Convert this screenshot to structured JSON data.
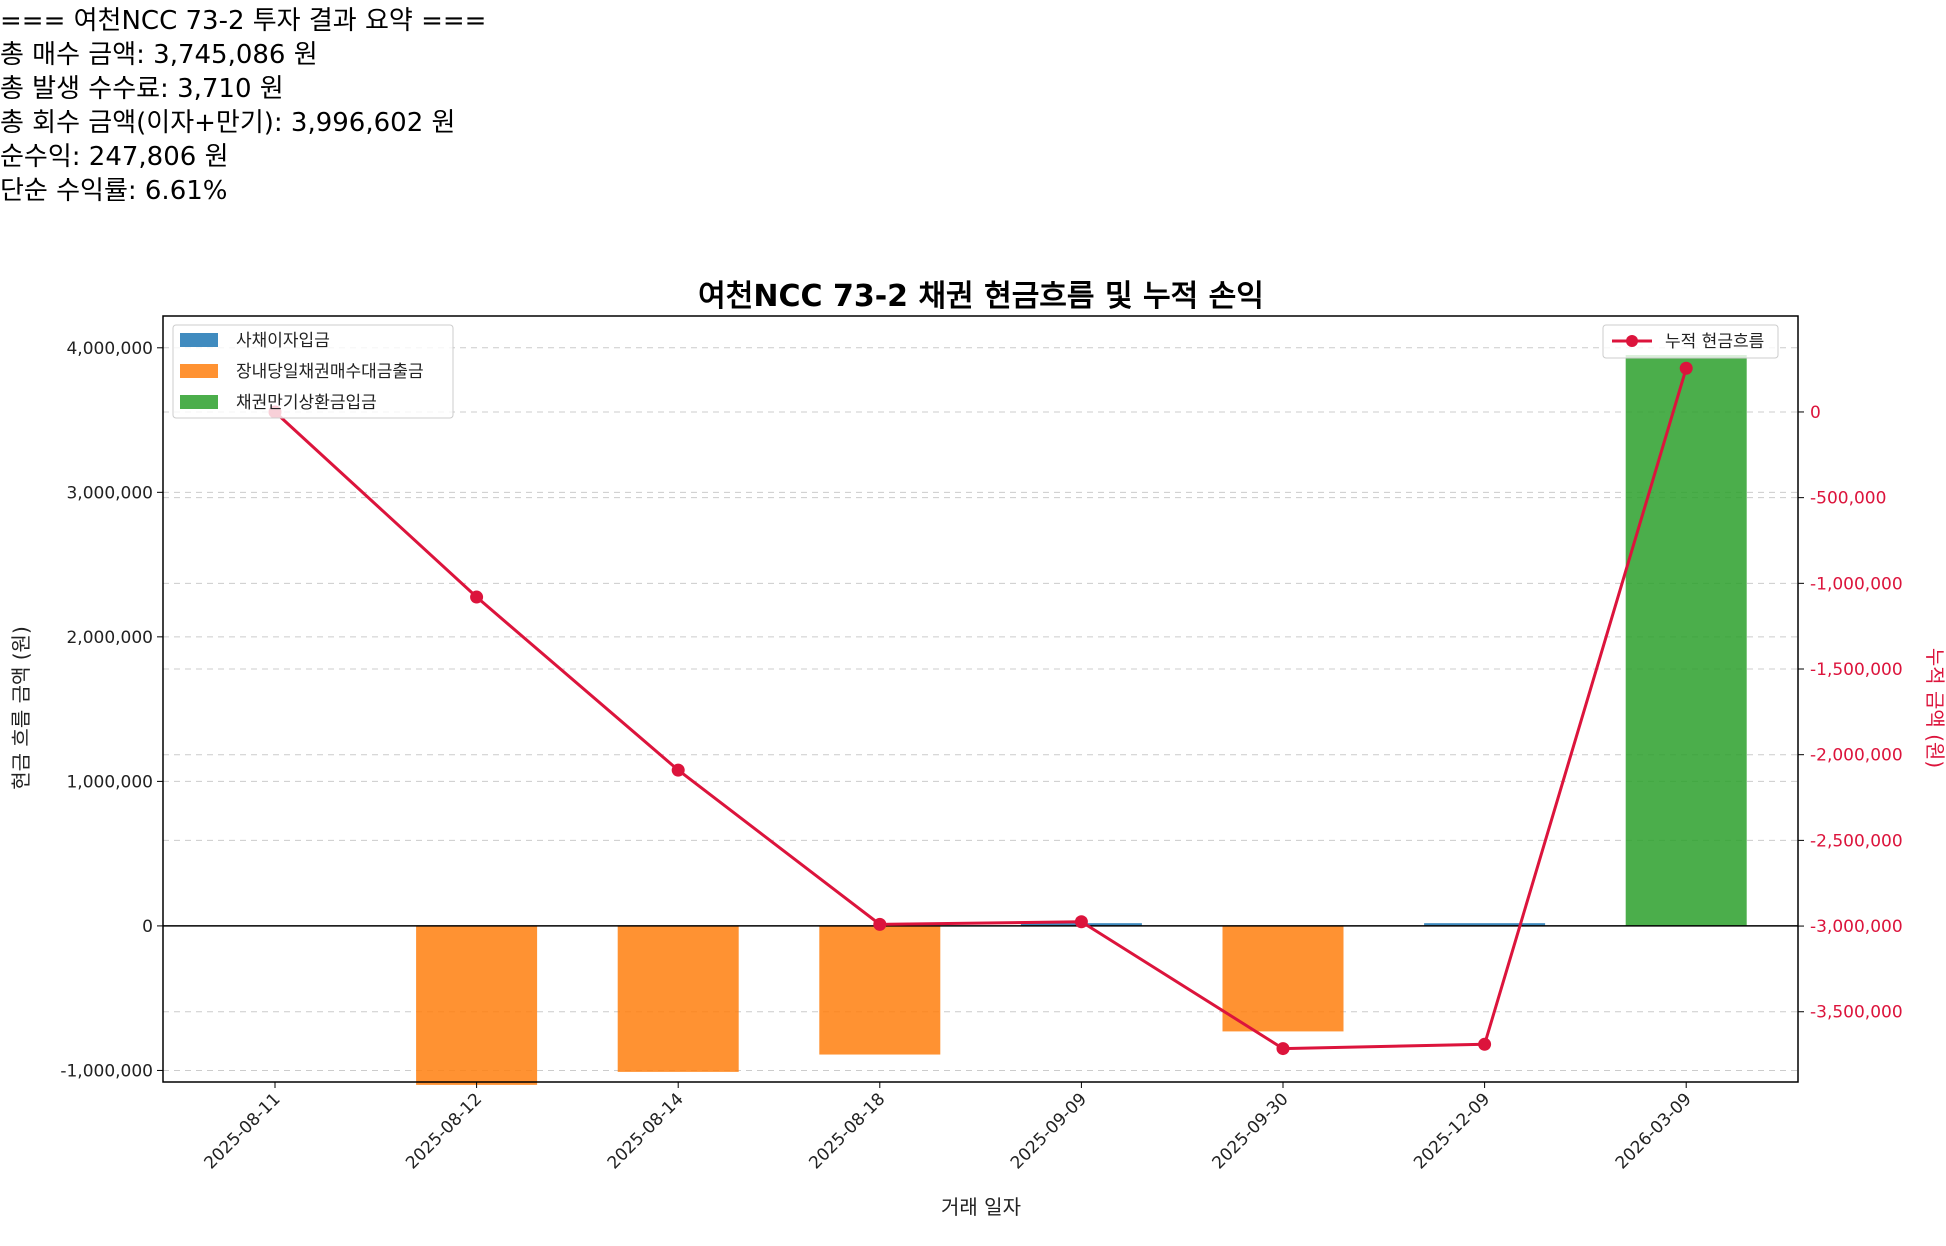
{
  "summary": {
    "header": "=== 여천NCC 73-2 투자 결과 요약 ===",
    "lines": [
      "총 매수 금액: 3,745,086 원",
      "총 발생 수수료: 3,710 원",
      "총 회수 금액(이자+만기): 3,996,602 원",
      "순수익: 247,806 원",
      "단순 수익률: 6.61%"
    ]
  },
  "chart_data": {
    "type": "bar",
    "title": "여천NCC 73-2 채권 현금흐름 및 누적 손익",
    "xlabel": "거래 일자",
    "ylabel": "현금 흐름 금액 (원)",
    "y2label": "누적 금액 (원)",
    "categories": [
      "2025-08-11",
      "2025-08-12",
      "2025-08-14",
      "2025-08-18",
      "2025-09-09",
      "2025-09-30",
      "2025-12-09",
      "2026-03-09"
    ],
    "ylim": [
      -1080000,
      4220000
    ],
    "y2lim": [
      -3910000,
      560000
    ],
    "yticks": [
      -1000000,
      0,
      1000000,
      2000000,
      3000000,
      4000000
    ],
    "yticklabels": [
      "-1,000,000",
      "0",
      "1,000,000",
      "2,000,000",
      "3,000,000",
      "4,000,000"
    ],
    "y2ticks": [
      0,
      -500000,
      -1000000,
      -1500000,
      -2000000,
      -2500000,
      -3000000,
      -3500000
    ],
    "y2ticklabels": [
      "0",
      "-500,000",
      "-1,000,000",
      "-1,500,000",
      "-2,000,000",
      "-2,500,000",
      "-3,000,000",
      "-3,500,000"
    ],
    "series": [
      {
        "name": "사채이자입금",
        "color": "#1f77b4",
        "values": [
          0,
          0,
          0,
          0,
          19000,
          0,
          19000,
          0
        ]
      },
      {
        "name": "장내당일채권매수대금출금",
        "color": "#ff7f0e",
        "values": [
          0,
          -1100000,
          -1010000,
          -890000,
          0,
          -730000,
          0,
          0
        ]
      },
      {
        "name": "채권만기상환금입금",
        "color": "#2ca02c",
        "values": [
          0,
          0,
          0,
          0,
          0,
          0,
          0,
          3950000
        ]
      }
    ],
    "line_series": {
      "name": "누적 현금흐름",
      "color": "#dc143c",
      "values": [
        0,
        -1080000,
        -2090000,
        -2990000,
        -2975000,
        -3715000,
        -3690000,
        255000
      ]
    },
    "grid": "y-dashed",
    "legend_left": "top-left",
    "legend_right": "top-right"
  }
}
